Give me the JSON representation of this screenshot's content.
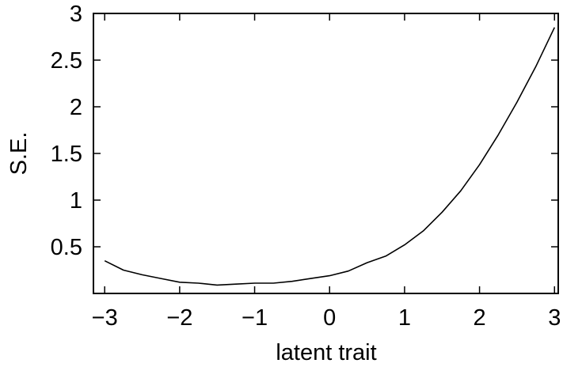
{
  "chart_data": {
    "type": "line",
    "title": "",
    "xlabel": "latent trait",
    "ylabel": "S.E.",
    "xlim": [
      -3.15,
      3.05
    ],
    "ylim": [
      0,
      3
    ],
    "grid": false,
    "legend": "none",
    "x_ticks": [
      -3,
      -2,
      -1,
      0,
      1,
      2,
      3
    ],
    "x_tick_labels": [
      "−3",
      "−2",
      "−1",
      "0",
      "1",
      "2",
      "3"
    ],
    "y_ticks": [
      0.5,
      1,
      1.5,
      2,
      2.5,
      3
    ],
    "y_tick_labels": [
      "0.5",
      "1",
      "1.5",
      "2",
      "2.5",
      "3"
    ],
    "line_color": "#000000",
    "series": [
      {
        "x": [
          -3.0,
          -2.75,
          -2.5,
          -2.25,
          -2.0,
          -1.75,
          -1.5,
          -1.25,
          -1.0,
          -0.75,
          -0.5,
          -0.25,
          0.0,
          0.25,
          0.5,
          0.75,
          1.0,
          1.25,
          1.5,
          1.75,
          2.0,
          2.25,
          2.5,
          2.75,
          3.0
        ],
        "y": [
          0.35,
          0.25,
          0.2,
          0.16,
          0.12,
          0.11,
          0.09,
          0.1,
          0.11,
          0.11,
          0.13,
          0.16,
          0.19,
          0.24,
          0.33,
          0.4,
          0.52,
          0.67,
          0.87,
          1.1,
          1.38,
          1.7,
          2.05,
          2.43,
          2.85
        ]
      }
    ]
  }
}
